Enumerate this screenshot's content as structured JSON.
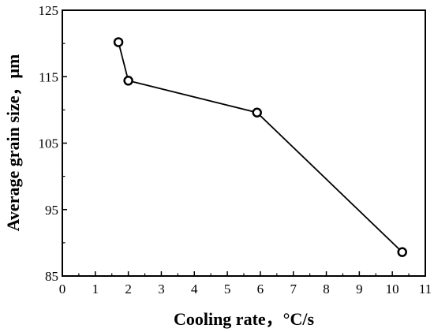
{
  "chart_data": {
    "type": "line",
    "title": "",
    "xlabel": "Cooling rate，°C/s",
    "ylabel": "Average grain size，μm",
    "xlim": [
      0,
      11
    ],
    "ylim": [
      85,
      125
    ],
    "x_ticks": [
      0,
      1,
      2,
      3,
      4,
      5,
      6,
      7,
      8,
      9,
      10,
      11
    ],
    "y_ticks": [
      85,
      95,
      105,
      115,
      125
    ],
    "grid": false,
    "legend": "none",
    "series": [
      {
        "x": [
          1.7,
          2.0,
          5.9,
          10.3
        ],
        "y": [
          120.2,
          114.4,
          109.6,
          88.6
        ],
        "marker": "open-circle",
        "color": "#000000"
      }
    ]
  }
}
